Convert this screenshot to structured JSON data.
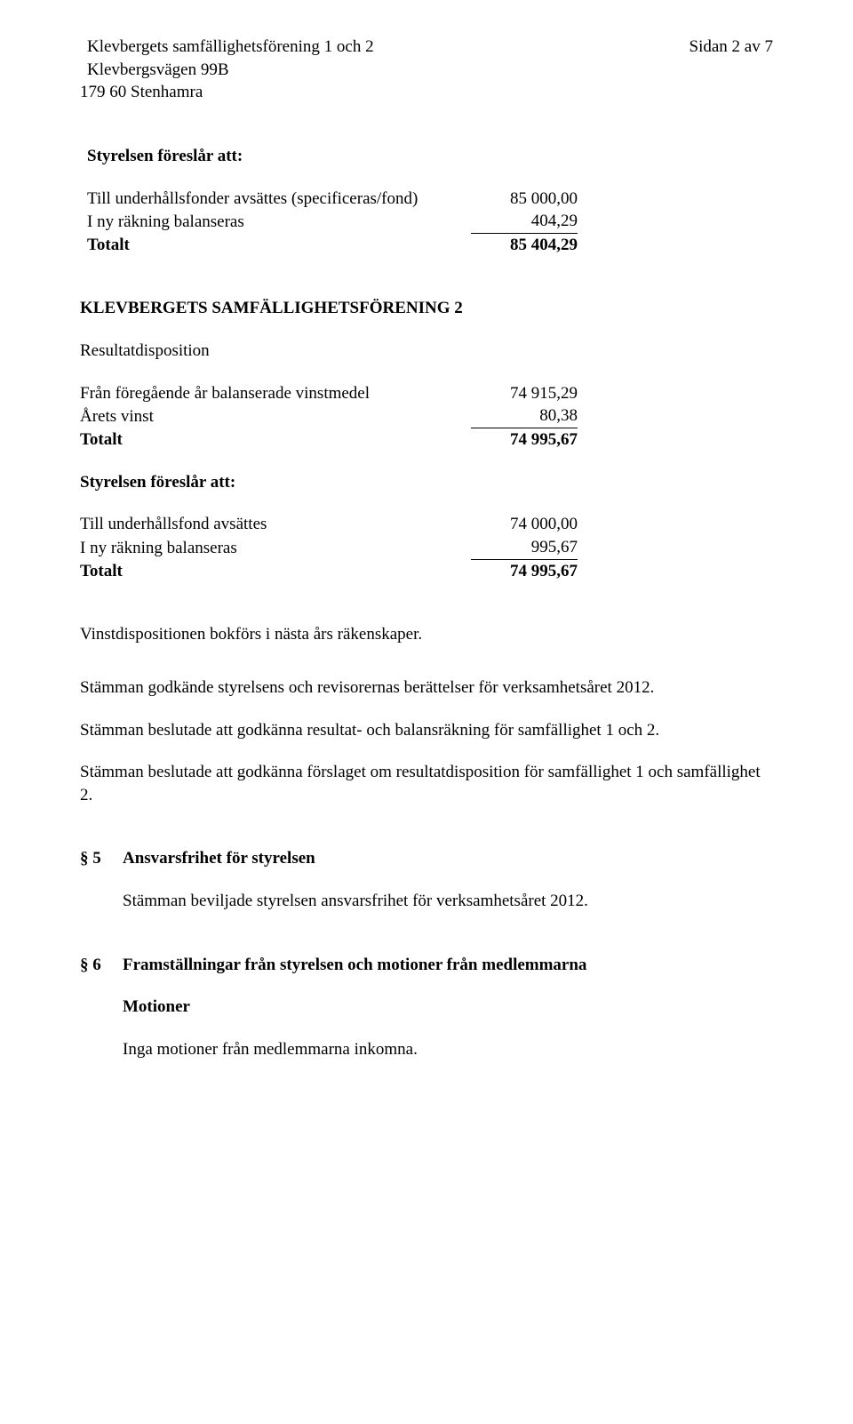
{
  "header": {
    "org_line1": "Klevbergets samfällighetsförening 1 och 2",
    "org_line2": "Klevbergsvägen 99B",
    "org_line3": "179 60 Stenhamra",
    "page_ref": "Sidan 2 av 7"
  },
  "block1": {
    "proposes_label": "Styrelsen föreslår att:",
    "rows": {
      "fund": {
        "label": "Till underhållsfonder avsättes (specificeras/fond)",
        "value": "85 000,00"
      },
      "carry": {
        "label": "I ny räkning balanseras",
        "value": "404,29"
      },
      "total": {
        "label": "Totalt",
        "value": "85 404,29"
      }
    }
  },
  "block2": {
    "heading": "KLEVBERGETS SAMFÄLLIGHETSFÖRENING 2",
    "result_disp_label": "Resultatdisposition",
    "rows_a": {
      "prev": {
        "label": "Från föregående år balanserade vinstmedel",
        "value": "74 915,29"
      },
      "profit": {
        "label": "Årets vinst",
        "value": "80,38"
      },
      "total": {
        "label": "Totalt",
        "value": "74 995,67"
      }
    },
    "proposes_label": "Styrelsen föreslår att:",
    "rows_b": {
      "fund": {
        "label": "Till underhållsfond avsättes",
        "value": "74 000,00"
      },
      "carry": {
        "label": "I ny räkning balanseras",
        "value": "995,67"
      },
      "total": {
        "label": "Totalt",
        "value": "74 995,67"
      }
    }
  },
  "paragraphs": {
    "p1": "Vinstdispositionen bokförs i nästa års räkenskaper.",
    "p2": "Stämman godkände styrelsens och revisorernas berättelser för verksamhetsåret 2012.",
    "p3": "Stämman beslutade att godkänna resultat- och balansräkning för samfällighet 1 och 2.",
    "p4": "Stämman beslutade att godkänna förslaget om resultatdisposition för samfällighet 1 och samfällighet 2."
  },
  "section5": {
    "num": "§ 5",
    "title": "Ansvarsfrihet för styrelsen",
    "body": "Stämman beviljade styrelsen ansvarsfrihet för verksamhetsåret 2012."
  },
  "section6": {
    "num": "§ 6",
    "title": "Framställningar från styrelsen och motioner från medlemmarna",
    "motions_heading": "Motioner",
    "motions_body": "Inga motioner från medlemmarna inkomna."
  }
}
